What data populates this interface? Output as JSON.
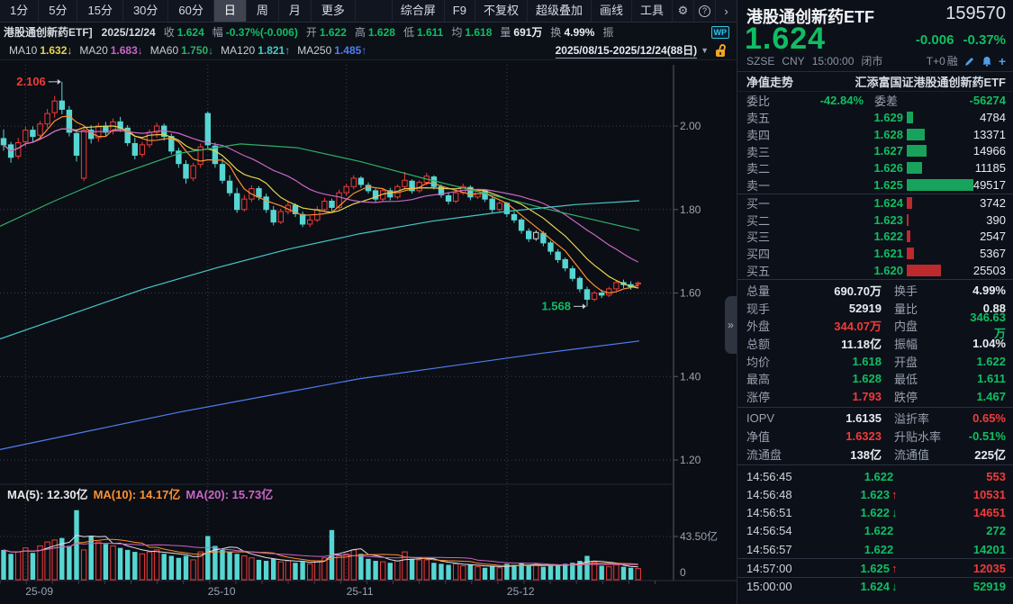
{
  "toolbar": {
    "tabs": [
      "1分",
      "5分",
      "15分",
      "30分",
      "60分",
      "日",
      "周",
      "月",
      "更多"
    ],
    "active_tab": "日",
    "menu": [
      "综合屏",
      "F9",
      "不复权",
      "超级叠加",
      "画线",
      "工具"
    ],
    "gear_icon": "⚙",
    "help_icon": "?",
    "collapse_icon": "›"
  },
  "quote_bar": {
    "symbol": "港股通创新药ETF]",
    "date": "2025/12/24",
    "fields": [
      {
        "label": "收",
        "value": "1.624",
        "color": "g"
      },
      {
        "label": "幅",
        "value": "-0.37%(-0.006)",
        "color": "g"
      },
      {
        "label": "开",
        "value": "1.622",
        "color": "g"
      },
      {
        "label": "高",
        "value": "1.628",
        "color": "g"
      },
      {
        "label": "低",
        "value": "1.611",
        "color": "g"
      },
      {
        "label": "均",
        "value": "1.618",
        "color": "g"
      },
      {
        "label": "量",
        "value": "691万",
        "color": "w"
      },
      {
        "label": "换",
        "value": "4.99%",
        "color": "w"
      },
      {
        "label": "振",
        "value": "",
        "color": "w"
      }
    ],
    "wp_badge": "WP"
  },
  "ma_bar": {
    "items": [
      {
        "label": "MA10",
        "value": "1.632",
        "dir": "↓",
        "color": "#e6d34f"
      },
      {
        "label": "MA20",
        "value": "1.683",
        "dir": "↓",
        "color": "#c965c9"
      },
      {
        "label": "MA60",
        "value": "1.750",
        "dir": "↓",
        "color": "#2fae68"
      },
      {
        "label": "MA120",
        "value": "1.821",
        "dir": "↑",
        "color": "#45c8c8"
      },
      {
        "label": "MA250",
        "value": "1.485",
        "dir": "↑",
        "color": "#4f7df2"
      }
    ],
    "range": "2025/08/15-2025/12/24(88日)",
    "caret": "▼"
  },
  "volume_header": {
    "items": [
      {
        "label": "MA(5):",
        "value": "12.30亿",
        "color": "#e8e8e8"
      },
      {
        "label": "MA(10):",
        "value": "14.17亿",
        "color": "#ff9030"
      },
      {
        "label": "MA(20):",
        "value": "15.73亿",
        "color": "#c965c9"
      }
    ]
  },
  "collapse_handle": "»",
  "chart_data": {
    "type": "candlestick+volume",
    "price_axis": {
      "min": 1.142,
      "max": 2.147,
      "ticks": [
        "2.00",
        "1.80",
        "1.60",
        "1.40",
        "1.20"
      ]
    },
    "vol_axis": {
      "ticks": [
        {
          "label": "43.50亿",
          "value": 43.5
        },
        {
          "label": "0",
          "value": 0
        }
      ]
    },
    "month_ticks": [
      {
        "label": "25-09",
        "index": 3
      },
      {
        "label": "25-10",
        "index": 28
      },
      {
        "label": "25-11",
        "index": 47
      },
      {
        "label": "25-12",
        "index": 69
      }
    ],
    "annotations": [
      {
        "text": "2.106",
        "index": 8,
        "value": 2.106,
        "kind": "high",
        "color": "#f13a3a"
      },
      {
        "text": "1.568",
        "index": 80,
        "value": 1.568,
        "kind": "low",
        "color": "#0fbe63"
      }
    ],
    "white_candle_index": 73,
    "candles": [
      [
        1.97,
        1.992,
        1.941,
        1.955
      ],
      [
        1.955,
        1.962,
        1.912,
        1.925
      ],
      [
        1.928,
        1.972,
        1.921,
        1.96
      ],
      [
        1.962,
        1.998,
        1.95,
        1.99
      ],
      [
        1.99,
        1.999,
        1.962,
        1.975
      ],
      [
        1.978,
        2.012,
        1.97,
        2.005
      ],
      [
        2.005,
        2.041,
        1.996,
        2.03
      ],
      [
        2.032,
        2.072,
        2.02,
        2.06
      ],
      [
        2.06,
        2.106,
        2.028,
        2.04
      ],
      [
        2.038,
        2.048,
        1.975,
        1.985
      ],
      [
        1.982,
        1.992,
        1.915,
        1.93
      ],
      [
        1.875,
        1.995,
        1.868,
        1.99
      ],
      [
        1.99,
        2.002,
        1.958,
        1.97
      ],
      [
        1.972,
        2.008,
        1.962,
        2.0
      ],
      [
        2.0,
        2.01,
        1.975,
        1.985
      ],
      [
        1.988,
        2.018,
        1.98,
        2.01
      ],
      [
        2.01,
        2.022,
        1.986,
        1.995
      ],
      [
        1.995,
        2.002,
        1.952,
        1.96
      ],
      [
        1.958,
        1.972,
        1.92,
        1.93
      ],
      [
        1.932,
        1.962,
        1.925,
        1.955
      ],
      [
        1.955,
        1.992,
        1.948,
        1.985
      ],
      [
        1.985,
        2.008,
        1.972,
        2.0
      ],
      [
        2.0,
        2.006,
        1.965,
        1.975
      ],
      [
        1.975,
        1.982,
        1.932,
        1.94
      ],
      [
        1.94,
        1.948,
        1.9,
        1.91
      ],
      [
        1.908,
        1.918,
        1.862,
        1.875
      ],
      [
        1.875,
        1.912,
        1.868,
        1.905
      ],
      [
        1.908,
        1.958,
        1.9,
        1.95
      ],
      [
        2.03,
        2.035,
        1.945,
        1.955
      ],
      [
        1.952,
        1.96,
        1.9,
        1.91
      ],
      [
        1.908,
        1.922,
        1.862,
        1.87
      ],
      [
        1.868,
        1.882,
        1.832,
        1.84
      ],
      [
        1.838,
        1.852,
        1.792,
        1.8
      ],
      [
        1.8,
        1.835,
        1.795,
        1.825
      ],
      [
        1.825,
        1.858,
        1.818,
        1.85
      ],
      [
        1.85,
        1.856,
        1.822,
        1.83
      ],
      [
        1.83,
        1.838,
        1.792,
        1.8
      ],
      [
        1.798,
        1.808,
        1.762,
        1.77
      ],
      [
        1.77,
        1.802,
        1.765,
        1.795
      ],
      [
        1.795,
        1.818,
        1.788,
        1.81
      ],
      [
        1.81,
        1.815,
        1.782,
        1.79
      ],
      [
        1.788,
        1.795,
        1.758,
        1.765
      ],
      [
        1.765,
        1.785,
        1.758,
        1.775
      ],
      [
        1.775,
        1.808,
        1.77,
        1.8
      ],
      [
        1.8,
        1.828,
        1.795,
        1.82
      ],
      [
        1.82,
        1.826,
        1.796,
        1.805
      ],
      [
        1.805,
        1.848,
        1.8,
        1.84
      ],
      [
        1.84,
        1.862,
        1.832,
        1.855
      ],
      [
        1.855,
        1.882,
        1.848,
        1.875
      ],
      [
        1.875,
        1.88,
        1.852,
        1.86
      ],
      [
        1.858,
        1.865,
        1.838,
        1.845
      ],
      [
        1.845,
        1.85,
        1.818,
        1.825
      ],
      [
        1.825,
        1.85,
        1.82,
        1.845
      ],
      [
        1.845,
        1.852,
        1.822,
        1.83
      ],
      [
        1.83,
        1.86,
        1.825,
        1.855
      ],
      [
        1.855,
        1.89,
        1.848,
        1.87
      ],
      [
        1.868,
        1.872,
        1.838,
        1.845
      ],
      [
        1.845,
        1.87,
        1.84,
        1.865
      ],
      [
        1.865,
        1.888,
        1.858,
        1.88
      ],
      [
        1.878,
        1.882,
        1.848,
        1.855
      ],
      [
        1.855,
        1.86,
        1.828,
        1.835
      ],
      [
        1.833,
        1.842,
        1.812,
        1.82
      ],
      [
        1.82,
        1.845,
        1.815,
        1.84
      ],
      [
        1.84,
        1.862,
        1.835,
        1.855
      ],
      [
        1.853,
        1.858,
        1.822,
        1.83
      ],
      [
        1.83,
        1.85,
        1.825,
        1.845
      ],
      [
        1.845,
        1.848,
        1.818,
        1.825
      ],
      [
        1.825,
        1.83,
        1.792,
        1.8
      ],
      [
        1.8,
        1.82,
        1.795,
        1.815
      ],
      [
        1.815,
        1.818,
        1.782,
        1.79
      ],
      [
        1.788,
        1.795,
        1.768,
        1.775
      ],
      [
        1.775,
        1.78,
        1.742,
        1.75
      ],
      [
        1.748,
        1.755,
        1.722,
        1.73
      ],
      [
        1.73,
        1.75,
        1.725,
        1.745
      ],
      [
        1.743,
        1.748,
        1.712,
        1.72
      ],
      [
        1.72,
        1.725,
        1.692,
        1.7
      ],
      [
        1.698,
        1.705,
        1.672,
        1.68
      ],
      [
        1.68,
        1.685,
        1.652,
        1.66
      ],
      [
        1.658,
        1.665,
        1.628,
        1.635
      ],
      [
        1.635,
        1.64,
        1.602,
        1.61
      ],
      [
        1.608,
        1.615,
        1.568,
        1.585
      ],
      [
        1.585,
        1.605,
        1.58,
        1.6
      ],
      [
        1.6,
        1.608,
        1.588,
        1.595
      ],
      [
        1.595,
        1.615,
        1.59,
        1.61
      ],
      [
        1.61,
        1.63,
        1.605,
        1.625
      ],
      [
        1.625,
        1.632,
        1.612,
        1.62
      ],
      [
        1.62,
        1.628,
        1.608,
        1.615
      ],
      [
        1.622,
        1.628,
        1.611,
        1.624
      ]
    ],
    "volumes": [
      30,
      26,
      28,
      32,
      27,
      34,
      38,
      40,
      42,
      34,
      70,
      30,
      44,
      38,
      36,
      34,
      32,
      30,
      28,
      26,
      28,
      30,
      26,
      24,
      22,
      24,
      20,
      28,
      44,
      34,
      30,
      28,
      26,
      24,
      22,
      20,
      19,
      21,
      18,
      19,
      17,
      18,
      16,
      19,
      22,
      50,
      24,
      26,
      30,
      26,
      21,
      19,
      18,
      17,
      19,
      28,
      21,
      20,
      20,
      17,
      16,
      15,
      16,
      14,
      15,
      13,
      12,
      14,
      12,
      16,
      15,
      17,
      14,
      15,
      13,
      15,
      14,
      16,
      17,
      19,
      24,
      18,
      14,
      13,
      15,
      13,
      12,
      11.2
    ],
    "overlays": {
      "ma60": [
        [
          0,
          1.76
        ],
        [
          60,
          1.82
        ],
        [
          120,
          1.875
        ],
        [
          200,
          1.935
        ],
        [
          267,
          1.957
        ],
        [
          330,
          1.948
        ],
        [
          400,
          1.915
        ],
        [
          470,
          1.875
        ],
        [
          540,
          1.838
        ],
        [
          600,
          1.805
        ],
        [
          660,
          1.775
        ],
        [
          710,
          1.75
        ]
      ],
      "ma120": [
        [
          0,
          1.49
        ],
        [
          80,
          1.55
        ],
        [
          160,
          1.61
        ],
        [
          240,
          1.66
        ],
        [
          320,
          1.705
        ],
        [
          400,
          1.742
        ],
        [
          480,
          1.772
        ],
        [
          560,
          1.795
        ],
        [
          640,
          1.812
        ],
        [
          710,
          1.821
        ]
      ],
      "ma250": [
        [
          0,
          1.225
        ],
        [
          100,
          1.27
        ],
        [
          200,
          1.315
        ],
        [
          300,
          1.355
        ],
        [
          400,
          1.395
        ],
        [
          500,
          1.425
        ],
        [
          600,
          1.455
        ],
        [
          710,
          1.485
        ]
      ]
    },
    "colors": {
      "up": "#f13a3a",
      "down": "#56d6d2",
      "white": "#dcdcdc",
      "ma5": "#ff9030",
      "ma10": "#e6d34f",
      "ma20": "#c965c9",
      "ma60": "#2fae68",
      "ma120": "#45c8c8",
      "ma250": "#4f7df2",
      "volma5": "#e0e3e8",
      "grid": "#3a4150",
      "axis": "#555d6b",
      "ticktext": "#9aa3b2"
    }
  },
  "panel": {
    "name": "港股通创新药ETF",
    "code": "159570",
    "price": "1.624",
    "change": "-0.006",
    "change_pct": "-0.37%",
    "exchange": "SZSE",
    "currency": "CNY",
    "time": "15:00:00",
    "status": "闭市",
    "tplus": "T+0",
    "margin": "融",
    "nav_label": "净值走势",
    "fund_name": "汇添富国证港股通创新药ETF",
    "weibi": {
      "l1": "委比",
      "v1": "-42.84%",
      "l2": "委差",
      "v2": "-56274"
    },
    "asks": [
      {
        "label": "卖五",
        "price": "1.629",
        "qty": 4784
      },
      {
        "label": "卖四",
        "price": "1.628",
        "qty": 13371
      },
      {
        "label": "卖三",
        "price": "1.627",
        "qty": 14966
      },
      {
        "label": "卖二",
        "price": "1.626",
        "qty": 11185
      },
      {
        "label": "卖一",
        "price": "1.625",
        "qty": 49517
      }
    ],
    "bids": [
      {
        "label": "买一",
        "price": "1.624",
        "qty": 3742
      },
      {
        "label": "买二",
        "price": "1.623",
        "qty": 390
      },
      {
        "label": "买三",
        "price": "1.622",
        "qty": 2547
      },
      {
        "label": "买四",
        "price": "1.621",
        "qty": 5367
      },
      {
        "label": "买五",
        "price": "1.620",
        "qty": 25503
      }
    ],
    "bar_max_qty": 49517,
    "stats": [
      {
        "l1": "总量",
        "v1": "690.70万",
        "c1": "w",
        "l2": "换手",
        "v2": "4.99%",
        "c2": "w"
      },
      {
        "l1": "现手",
        "v1": "52919",
        "c1": "w",
        "l2": "量比",
        "v2": "0.88",
        "c2": "w"
      },
      {
        "l1": "外盘",
        "v1": "344.07万",
        "c1": "r",
        "l2": "内盘",
        "v2": "346.63万",
        "c2": "g"
      },
      {
        "l1": "总额",
        "v1": "11.18亿",
        "c1": "w",
        "l2": "振幅",
        "v2": "1.04%",
        "c2": "w"
      },
      {
        "l1": "均价",
        "v1": "1.618",
        "c1": "g",
        "l2": "开盘",
        "v2": "1.622",
        "c2": "g"
      },
      {
        "l1": "最高",
        "v1": "1.628",
        "c1": "g",
        "l2": "最低",
        "v2": "1.611",
        "c2": "g"
      },
      {
        "l1": "涨停",
        "v1": "1.793",
        "c1": "r",
        "l2": "跌停",
        "v2": "1.467",
        "c2": "g"
      }
    ],
    "iopv": [
      {
        "l1": "IOPV",
        "v1": "1.6135",
        "c1": "w",
        "l2": "溢折率",
        "v2": "0.65%",
        "c2": "r"
      },
      {
        "l1": "净值",
        "v1": "1.6323",
        "c1": "r",
        "l2": "升贴水率",
        "v2": "-0.51%",
        "c2": "g"
      },
      {
        "l1": "流通盘",
        "v1": "138亿",
        "c1": "w",
        "l2": "流通值",
        "v2": "225亿",
        "c2": "w"
      }
    ],
    "tick_list": [
      {
        "time": "14:56:45",
        "price": "1.622",
        "arrow": "",
        "qty": "553",
        "qc": "r",
        "sep": false
      },
      {
        "time": "14:56:48",
        "price": "1.623",
        "arrow": "up",
        "qty": "10531",
        "qc": "r",
        "sep": false
      },
      {
        "time": "14:56:51",
        "price": "1.622",
        "arrow": "down",
        "qty": "14651",
        "qc": "r",
        "sep": false
      },
      {
        "time": "14:56:54",
        "price": "1.622",
        "arrow": "",
        "qty": "272",
        "qc": "g",
        "sep": false
      },
      {
        "time": "14:56:57",
        "price": "1.622",
        "arrow": "",
        "qty": "14201",
        "qc": "g",
        "sep": false
      },
      {
        "time": "14:57:00",
        "price": "1.625",
        "arrow": "up",
        "qty": "12035",
        "qc": "r",
        "sep": true
      },
      {
        "time": "15:00:00",
        "price": "1.624",
        "arrow": "down",
        "qty": "52919",
        "qc": "g",
        "sep": true
      }
    ]
  }
}
